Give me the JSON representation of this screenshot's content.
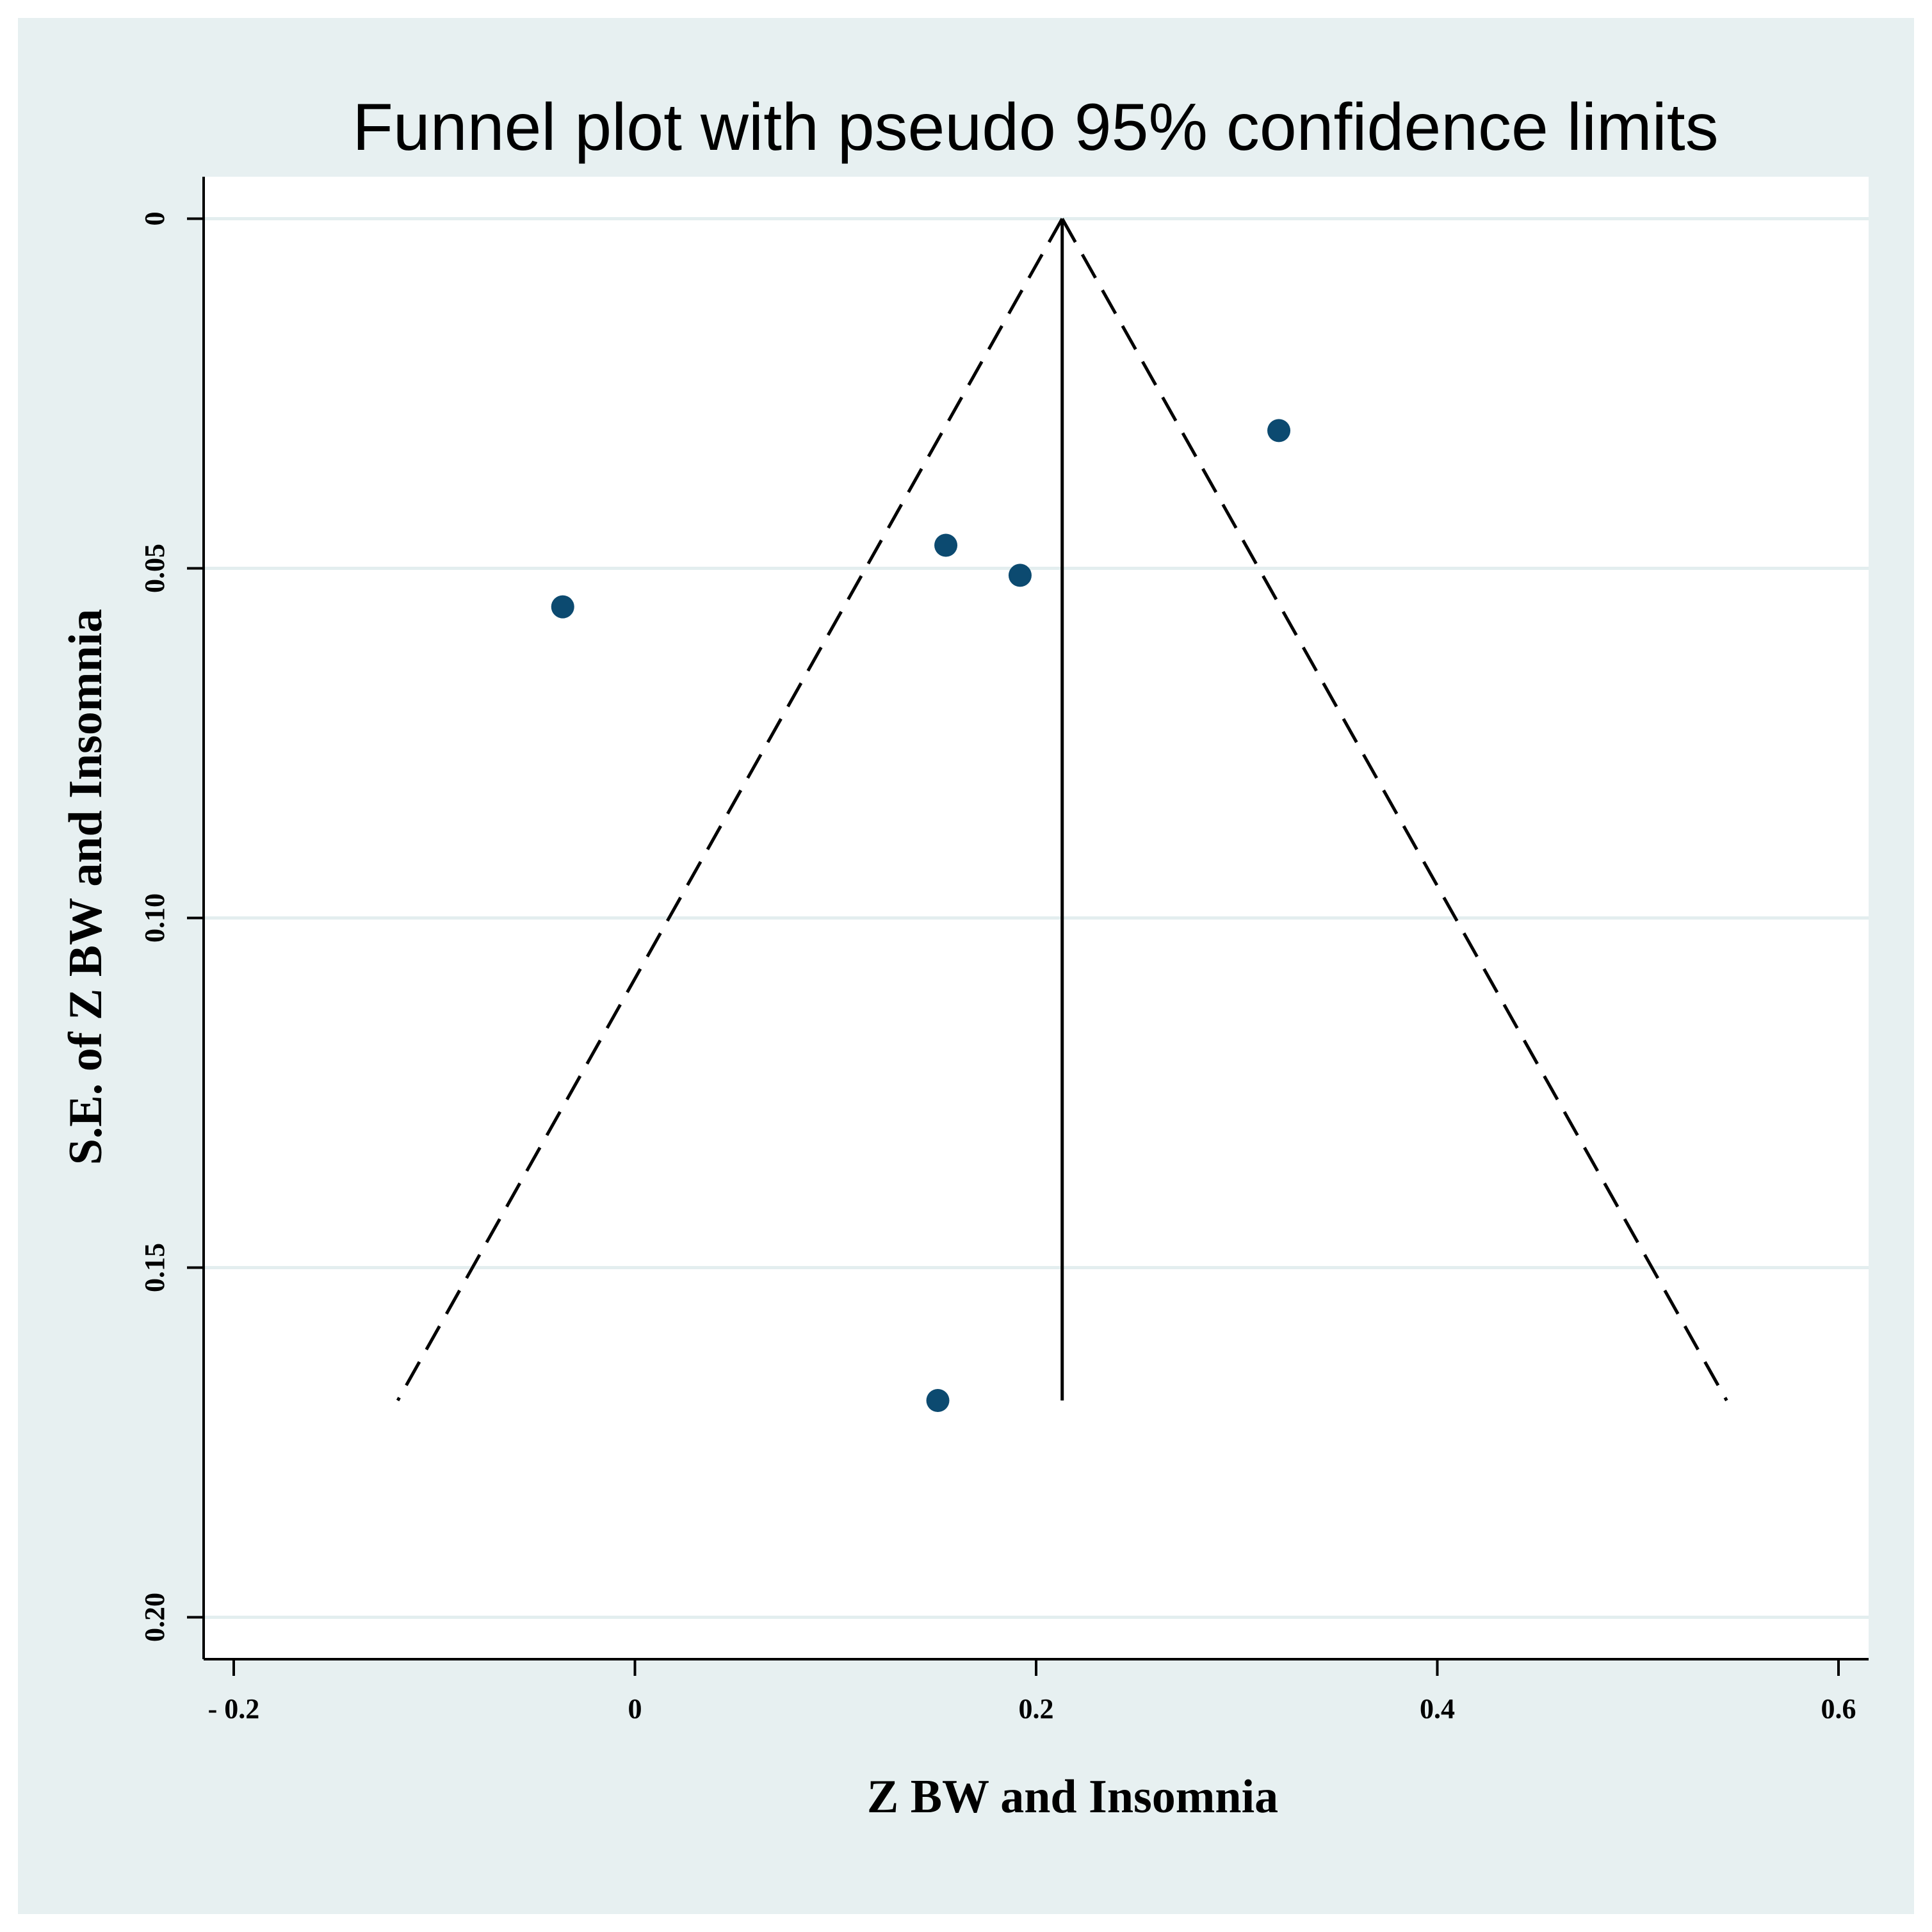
{
  "chart_data": {
    "type": "scatter",
    "title": "Funnel plot with pseudo 95% confidence limits",
    "xlabel": "Z BW and Insomnia",
    "ylabel": "S.E.  of Z BW and Insomnia",
    "xlim": [
      -0.215,
      0.615
    ],
    "ylim": [
      0.206,
      -0.006
    ],
    "y_reversed": true,
    "xticks": [
      {
        "value": -0.2,
        "label": "- 0.2"
      },
      {
        "value": 0,
        "label": "0"
      },
      {
        "value": 0.2,
        "label": "0.2"
      },
      {
        "value": 0.4,
        "label": "0.4"
      },
      {
        "value": 0.6,
        "label": "0.6"
      }
    ],
    "yticks": [
      {
        "value": 0,
        "label": "0"
      },
      {
        "value": 0.05,
        "label": "0.05"
      },
      {
        "value": 0.1,
        "label": "0.10"
      },
      {
        "value": 0.15,
        "label": "0.15"
      },
      {
        "value": 0.2,
        "label": "0.20"
      }
    ],
    "grid": "horizontal",
    "pooled_estimate": 0.213,
    "max_se": 0.169,
    "ci_multiplier": 1.96,
    "points": [
      {
        "x": -0.036,
        "y": 0.0555
      },
      {
        "x": 0.155,
        "y": 0.0467
      },
      {
        "x": 0.192,
        "y": 0.051
      },
      {
        "x": 0.321,
        "y": 0.0303
      },
      {
        "x": 0.151,
        "y": 0.169
      }
    ]
  },
  "colors": {
    "background": "#e7f0f1",
    "plot_background": "#ffffff",
    "gridline": "#e3eeef",
    "marker": "#0c4a70",
    "line": "#000000"
  }
}
